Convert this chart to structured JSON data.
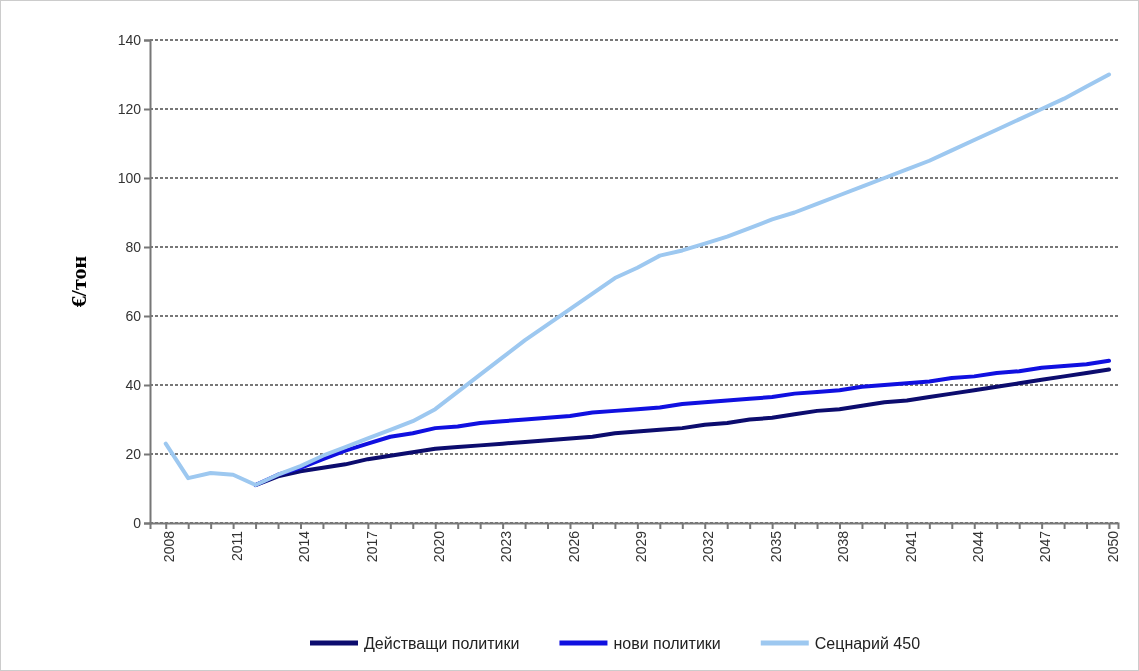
{
  "chart_data": {
    "type": "line",
    "ylabel": "€/тон",
    "xlim": [
      2007.3,
      2050.4
    ],
    "ylim": [
      0,
      140
    ],
    "yticks": [
      0,
      20,
      40,
      60,
      80,
      100,
      120,
      140
    ],
    "xticks": [
      2008,
      {
        "value": 2009,
        "label": null
      },
      {
        "value": 2010,
        "label": null
      },
      2011,
      {
        "value": 2012,
        "label": null
      },
      {
        "value": 2013,
        "label": null
      },
      2014,
      {
        "value": 2015,
        "label": null
      },
      {
        "value": 2016,
        "label": null
      },
      2017,
      {
        "value": 2018,
        "label": null
      },
      {
        "value": 2019,
        "label": null
      },
      2020,
      {
        "value": 2021,
        "label": null
      },
      {
        "value": 2022,
        "label": null
      },
      2023,
      {
        "value": 2024,
        "label": null
      },
      {
        "value": 2025,
        "label": null
      },
      2026,
      {
        "value": 2027,
        "label": null
      },
      {
        "value": 2028,
        "label": null
      },
      2029,
      {
        "value": 2030,
        "label": null
      },
      {
        "value": 2031,
        "label": null
      },
      2032,
      {
        "value": 2033,
        "label": null
      },
      {
        "value": 2034,
        "label": null
      },
      2035,
      {
        "value": 2036,
        "label": null
      },
      {
        "value": 2037,
        "label": null
      },
      2038,
      {
        "value": 2039,
        "label": null
      },
      {
        "value": 2040,
        "label": null
      },
      2041,
      {
        "value": 2042,
        "label": null
      },
      {
        "value": 2043,
        "label": null
      },
      2044,
      {
        "value": 2045,
        "label": null
      },
      {
        "value": 2046,
        "label": null
      },
      2047,
      {
        "value": 2048,
        "label": null
      },
      {
        "value": 2049,
        "label": null
      },
      2050
    ],
    "grid": "y",
    "legend": "bottom",
    "line_style": "solid",
    "marker": "none",
    "series": [
      {
        "name": "Действащи политики",
        "color": "#0c0c6e",
        "x": [
          2012,
          2013,
          2014,
          2015,
          2016,
          2017,
          2018,
          2019,
          2020,
          2021,
          2022,
          2023,
          2024,
          2025,
          2026,
          2027,
          2028,
          2029,
          2030,
          2031,
          2032,
          2033,
          2034,
          2035,
          2036,
          2037,
          2038,
          2039,
          2040,
          2041,
          2042,
          2043,
          2044,
          2045,
          2046,
          2047,
          2048,
          2049,
          2050
        ],
        "values": [
          11,
          13.5,
          15,
          16,
          17,
          18.5,
          19.5,
          20.5,
          21.5,
          22,
          22.5,
          23,
          23.5,
          24,
          24.5,
          25,
          26,
          26.5,
          27,
          27.5,
          28.5,
          29,
          30,
          30.5,
          31.5,
          32.5,
          33,
          34,
          35,
          35.5,
          36.5,
          37.5,
          38.5,
          39.5,
          40.5,
          41.5,
          42.5,
          43.5,
          44.5
        ]
      },
      {
        "name": "нови политики",
        "color": "#1010e0",
        "x": [
          2012,
          2013,
          2014,
          2015,
          2016,
          2017,
          2018,
          2019,
          2020,
          2021,
          2022,
          2023,
          2024,
          2025,
          2026,
          2027,
          2028,
          2029,
          2030,
          2031,
          2032,
          2033,
          2034,
          2035,
          2036,
          2037,
          2038,
          2039,
          2040,
          2041,
          2042,
          2043,
          2044,
          2045,
          2046,
          2047,
          2048,
          2049,
          2050
        ],
        "values": [
          11,
          14,
          16,
          18.5,
          21,
          23,
          25,
          26,
          27.5,
          28,
          29,
          29.5,
          30,
          30.5,
          31,
          32,
          32.5,
          33,
          33.5,
          34.5,
          35,
          35.5,
          36,
          36.5,
          37.5,
          38,
          38.5,
          39.5,
          40,
          40.5,
          41,
          42,
          42.5,
          43.5,
          44,
          45,
          45.5,
          46,
          47
        ]
      },
      {
        "name": "Сецнарий 450",
        "color": "#9dc8f0",
        "x": [
          2008,
          2009,
          2010,
          2011,
          2012,
          2013,
          2014,
          2015,
          2016,
          2017,
          2018,
          2019,
          2020,
          2021,
          2022,
          2023,
          2024,
          2025,
          2026,
          2027,
          2028,
          2029,
          2030,
          2031,
          2032,
          2033,
          2034,
          2035,
          2036,
          2037,
          2038,
          2039,
          2040,
          2041,
          2042,
          2043,
          2044,
          2045,
          2046,
          2047,
          2048,
          2049,
          2050
        ],
        "values": [
          23,
          13,
          14.5,
          14,
          11,
          14,
          16.5,
          19.5,
          22,
          24.5,
          27,
          29.5,
          33,
          38,
          43,
          48,
          53,
          57.5,
          62,
          66.5,
          71,
          74,
          77.5,
          79,
          81,
          83,
          85.5,
          88,
          90,
          92.5,
          95,
          97.5,
          100,
          102.5,
          105,
          108,
          111,
          114,
          117,
          120,
          123,
          126.5,
          130
        ]
      }
    ]
  }
}
